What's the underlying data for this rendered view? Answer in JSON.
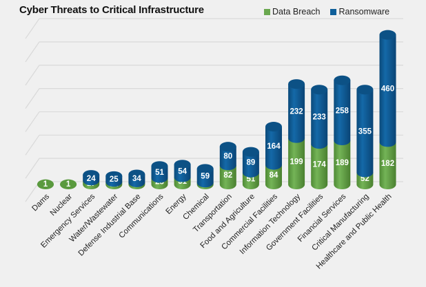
{
  "chart_data": {
    "type": "bar",
    "stacked": true,
    "style": "3d-cylinder",
    "title": "Cyber Threats to Critical Infrastructure",
    "xlabel": "",
    "ylabel": "",
    "ylim": [
      0,
      700
    ],
    "grid": true,
    "legend_position": "top-right",
    "categories": [
      "Dams",
      "Nuclear",
      "Emergency Services",
      "Water/Wastewater",
      "Defense Industrial Base",
      "Communications",
      "Energy",
      "Chemical",
      "Transportation",
      "Food and Agriculture",
      "Commercial Facilities",
      "Information Technology",
      "Government Facilities",
      "Financial Services",
      "Critical Manufacturing",
      "Healthcare and Public Health"
    ],
    "series": [
      {
        "name": "Data Breach",
        "color": "#6aa84f",
        "values": [
          1,
          1,
          17,
          11,
          9,
          28,
          31,
          8,
          82,
          51,
          84,
          199,
          174,
          189,
          52,
          182
        ]
      },
      {
        "name": "Ransomware",
        "color": "#0f5f9a",
        "values": [
          null,
          null,
          24,
          25,
          34,
          51,
          54,
          59,
          80,
          89,
          164,
          232,
          233,
          258,
          355,
          460
        ]
      }
    ]
  }
}
